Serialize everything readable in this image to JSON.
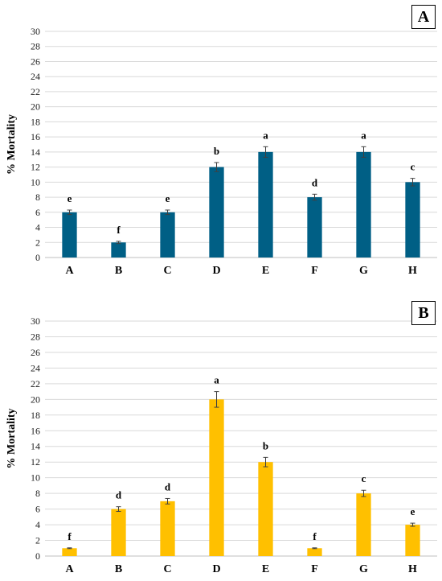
{
  "chart_data": [
    {
      "panel_label": "A",
      "type": "bar",
      "ylabel": "% Mortality",
      "ylim": [
        0,
        30
      ],
      "yticks": [
        0,
        2,
        4,
        6,
        8,
        10,
        12,
        14,
        16,
        18,
        20,
        22,
        24,
        26,
        28,
        30
      ],
      "categories": [
        "A",
        "B",
        "C",
        "D",
        "E",
        "F",
        "G",
        "H"
      ],
      "values": [
        6,
        2,
        6,
        12,
        14,
        8,
        14,
        10
      ],
      "errors": [
        0.3,
        0.15,
        0.3,
        0.6,
        0.7,
        0.4,
        0.7,
        0.5
      ],
      "letters": [
        "e",
        "f",
        "e",
        "b",
        "a",
        "d",
        "a",
        "c"
      ],
      "bar_color": "#005f85",
      "grid": true
    },
    {
      "panel_label": "B",
      "type": "bar",
      "ylabel": "% Mortality",
      "ylim": [
        0,
        30
      ],
      "yticks": [
        0,
        2,
        4,
        6,
        8,
        10,
        12,
        14,
        16,
        18,
        20,
        22,
        24,
        26,
        28,
        30
      ],
      "categories": [
        "A",
        "B",
        "C",
        "D",
        "E",
        "F",
        "G",
        "H"
      ],
      "values": [
        1,
        6,
        7,
        20,
        12,
        1,
        8,
        4
      ],
      "errors": [
        0.05,
        0.3,
        0.35,
        1.0,
        0.6,
        0.05,
        0.4,
        0.2
      ],
      "letters": [
        "f",
        "d",
        "d",
        "a",
        "b",
        "f",
        "c",
        "e"
      ],
      "bar_color": "#ffc000",
      "grid": true
    }
  ]
}
